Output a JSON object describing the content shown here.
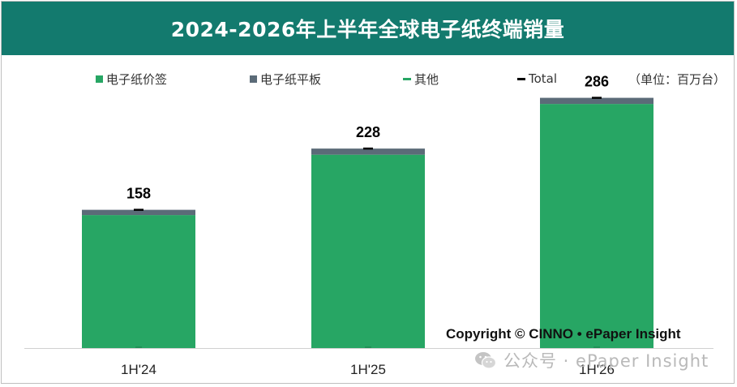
{
  "title": "2024-2026年上半年全球电子纸终端销量",
  "unit_label": "（单位：百万台）",
  "copyright": "Copyright © CINNO • ePaper Insight",
  "watermark": "公众号 · ePaper Insight",
  "colors": {
    "header": "#137a6e",
    "price_tag": "#27a664",
    "tablet": "#5b6b78",
    "other": "#27a664",
    "total": "#000000"
  },
  "chart_data": {
    "type": "bar",
    "stacked": true,
    "categories": [
      "1H'24",
      "1H'25",
      "1H'26"
    ],
    "series": [
      {
        "name": "电子纸价签",
        "values": [
          152,
          221,
          279
        ],
        "marker": "square"
      },
      {
        "name": "电子纸平板",
        "values": [
          6,
          7,
          7
        ],
        "marker": "square"
      },
      {
        "name": "其他",
        "values": [
          0,
          0,
          0
        ],
        "marker": "dash"
      },
      {
        "name": "Total",
        "values": [
          158,
          228,
          286
        ],
        "marker": "dash"
      }
    ],
    "total_labels": [
      "158",
      "228",
      "286"
    ],
    "ylim": [
      0,
      300
    ],
    "grid": false,
    "legend_position": "top"
  }
}
